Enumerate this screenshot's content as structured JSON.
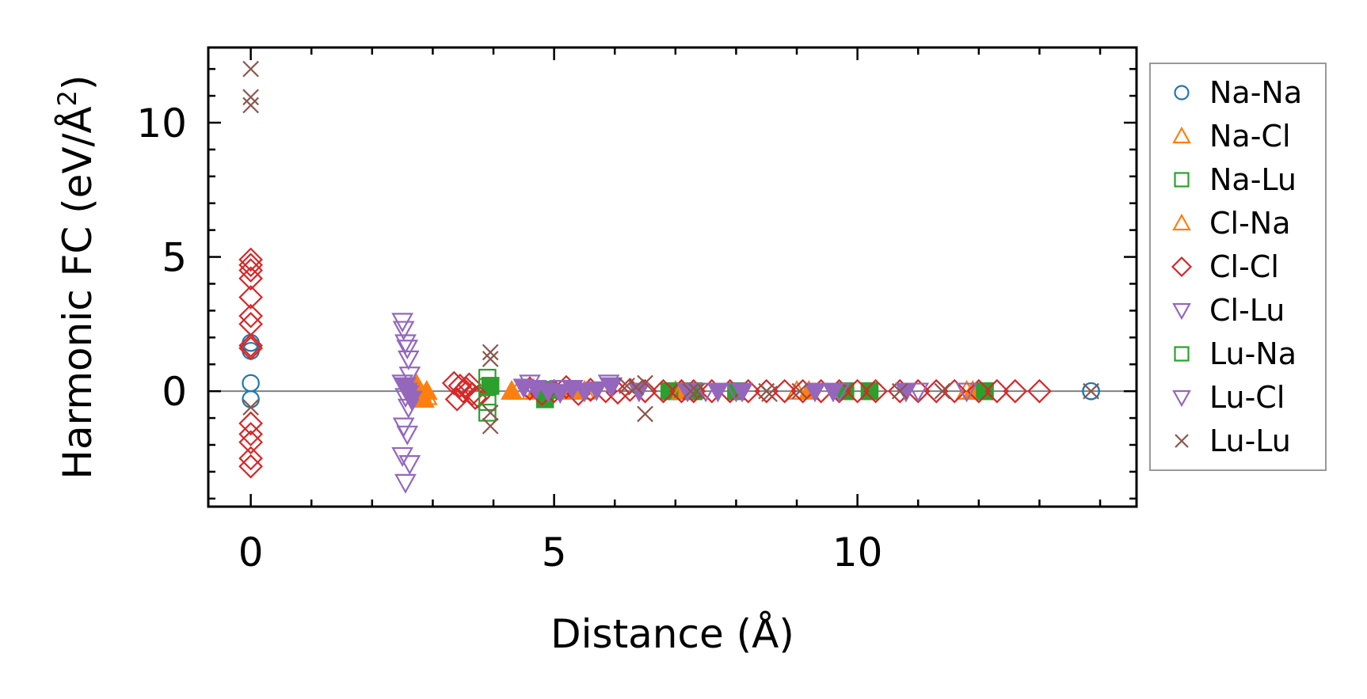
{
  "chart_data": {
    "type": "scatter",
    "xlabel": "Distance (Å)",
    "ylabel": {
      "prefix": "Harmonic FC (eV/Å",
      "sup": "2",
      "suffix": ")"
    },
    "xlim": [
      -0.7,
      14.6
    ],
    "ylim": [
      -4.3,
      12.8
    ],
    "x_ticks": [
      0,
      5,
      10
    ],
    "y_ticks": [
      0,
      5,
      10
    ],
    "x_minor_step": 1,
    "y_minor_step": 1,
    "zero_line": true,
    "legend_position": "outside-right",
    "series": [
      {
        "name": "Na-Na",
        "marker": "circle",
        "color": "#1f77b4",
        "filled": false,
        "x": [
          0,
          0,
          0,
          0,
          13.85,
          13.85
        ],
        "y": [
          1.8,
          1.5,
          0.3,
          -0.3,
          0.0,
          0.0
        ]
      },
      {
        "name": "Na-Cl",
        "marker": "triangle-up",
        "color": "#ff7f0e",
        "filled": true,
        "x": [
          2.72,
          2.75,
          2.8,
          2.85,
          2.78,
          2.9,
          4.3,
          4.7,
          5.3,
          7.0,
          9.2,
          11.9
        ],
        "y": [
          0.3,
          0.1,
          -0.1,
          -0.3,
          0.0,
          0.0,
          0.0,
          0.0,
          0.0,
          0.0,
          0.0,
          0.0
        ]
      },
      {
        "name": "Na-Lu",
        "marker": "square",
        "color": "#2ca02c",
        "filled": true,
        "x": [
          3.95,
          4.9,
          4.85,
          6.9,
          7.3,
          8.0,
          9.8,
          10.2,
          12.1
        ],
        "y": [
          0.2,
          0.05,
          -0.3,
          0.0,
          0.0,
          0.0,
          0.0,
          0.0,
          0.0
        ]
      },
      {
        "name": "Cl-Na",
        "marker": "triangle-up",
        "color": "#ff7f0e",
        "filled": false,
        "x": [
          2.72,
          2.8,
          2.9,
          4.4,
          5.5,
          7.1,
          9.0,
          11.8
        ],
        "y": [
          0.25,
          -0.05,
          -0.2,
          0.0,
          0.0,
          0.0,
          0.0,
          0.0
        ]
      },
      {
        "name": "Cl-Cl",
        "marker": "diamond",
        "color": "#d62728",
        "filled": false,
        "x": [
          0,
          0,
          0,
          0,
          0,
          0,
          0,
          0,
          0,
          0,
          0,
          0,
          0,
          0,
          3.35,
          3.45,
          3.55,
          3.65,
          3.75,
          3.4,
          3.6,
          3.5,
          3.7,
          4.6,
          4.8,
          5.0,
          5.2,
          5.4,
          5.6,
          5.85,
          6.05,
          6.25,
          6.5,
          6.8,
          7.1,
          7.3,
          7.6,
          7.9,
          8.2,
          8.5,
          8.8,
          9.1,
          9.4,
          9.7,
          10.0,
          10.3,
          10.7,
          11.0,
          11.3,
          11.6,
          12.0,
          12.3,
          12.6,
          13.0
        ],
        "y": [
          4.9,
          4.7,
          4.5,
          4.2,
          3.5,
          2.8,
          2.5,
          1.7,
          1.6,
          -1.2,
          -1.6,
          -1.9,
          -2.5,
          -2.8,
          0.3,
          0.2,
          0.1,
          -0.1,
          -0.2,
          -0.3,
          0.25,
          0.0,
          -0.25,
          0.1,
          -0.1,
          0.0,
          0.15,
          -0.1,
          0.05,
          0.0,
          -0.05,
          0.05,
          0.0,
          0.0,
          0.0,
          0.0,
          0.0,
          0.0,
          0.0,
          0.0,
          0.0,
          0.0,
          0.0,
          0.0,
          0.0,
          0.0,
          0.0,
          0.0,
          0.0,
          0.0,
          0.0,
          0.0,
          0.0,
          0.0
        ]
      },
      {
        "name": "Cl-Lu",
        "marker": "triangle-down",
        "color": "#9467bd",
        "filled": false,
        "x": [
          2.5,
          2.52,
          2.55,
          2.58,
          2.6,
          2.62,
          2.5,
          2.55,
          2.6,
          2.52,
          2.58,
          2.5,
          2.62,
          2.55,
          4.6,
          5.1,
          5.9,
          7.5,
          8.0,
          9.7,
          11.0,
          11.8
        ],
        "y": [
          2.6,
          2.3,
          1.8,
          1.6,
          1.2,
          0.6,
          0.3,
          -0.2,
          -0.6,
          -1.3,
          -1.6,
          -2.4,
          -2.7,
          -3.4,
          0.3,
          0.1,
          0.3,
          0.0,
          0.0,
          0.0,
          0.0,
          0.0
        ]
      },
      {
        "name": "Lu-Na",
        "marker": "square",
        "color": "#2ca02c",
        "filled": false,
        "x": [
          3.9,
          3.9,
          3.9,
          3.9
        ],
        "y": [
          0.5,
          0.15,
          -0.4,
          -0.8
        ]
      },
      {
        "name": "Lu-Cl",
        "marker": "triangle-down",
        "color": "#9467bd",
        "filled": true,
        "x": [
          2.55,
          2.6,
          2.65,
          2.58,
          4.5,
          4.7,
          4.9,
          5.1,
          5.3,
          5.5,
          5.7,
          5.95,
          6.4,
          7.2,
          7.7,
          8.1,
          9.3,
          9.6,
          10.8
        ],
        "y": [
          0.2,
          -0.1,
          -0.3,
          0.0,
          0.15,
          0.1,
          0.0,
          -0.05,
          0.1,
          0.0,
          0.05,
          0.2,
          0.0,
          0.0,
          0.0,
          0.0,
          0.0,
          0.0,
          0.0
        ]
      },
      {
        "name": "Lu-Lu",
        "marker": "x",
        "color": "#8c564b",
        "filled": false,
        "x": [
          0,
          0,
          0,
          0,
          3.95,
          3.95,
          3.95,
          3.95,
          6.2,
          6.35,
          6.5,
          6.5,
          7.25,
          7.35,
          8.5,
          8.55,
          9.05,
          10.7,
          11.4,
          13.85
        ],
        "y": [
          12.0,
          10.95,
          10.65,
          -0.6,
          1.45,
          1.2,
          -0.8,
          -1.3,
          0.2,
          0.15,
          0.3,
          -0.85,
          0.0,
          0.0,
          0.0,
          -0.1,
          0.0,
          0.0,
          0.0,
          0.0
        ]
      }
    ]
  }
}
